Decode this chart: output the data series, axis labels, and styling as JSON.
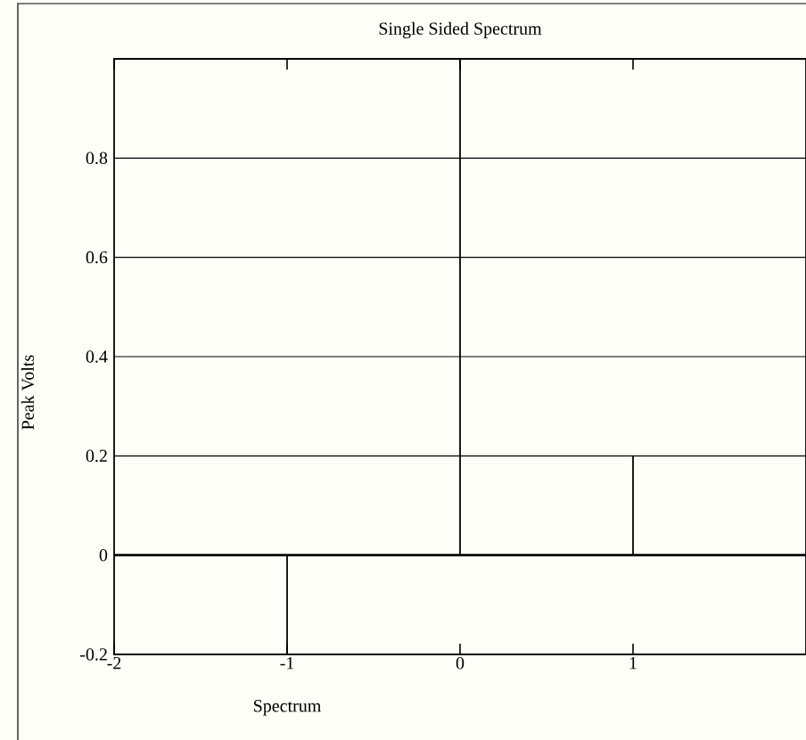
{
  "chart_data": {
    "type": "bar",
    "title": "Single Sided Spectrum",
    "xlabel": "Spectrum",
    "ylabel": "Peak Volts",
    "x": [
      -1,
      0,
      1
    ],
    "values": [
      -0.2,
      1,
      0.2
    ],
    "color": "#000000",
    "xlim": [
      -2,
      2
    ],
    "ylim": [
      -0.2,
      1
    ],
    "xticks": [
      -2,
      -1,
      0,
      1
    ],
    "yticks": [
      -0.2,
      0,
      0.2,
      0.4,
      0.6,
      0.8
    ],
    "grid": "y"
  }
}
